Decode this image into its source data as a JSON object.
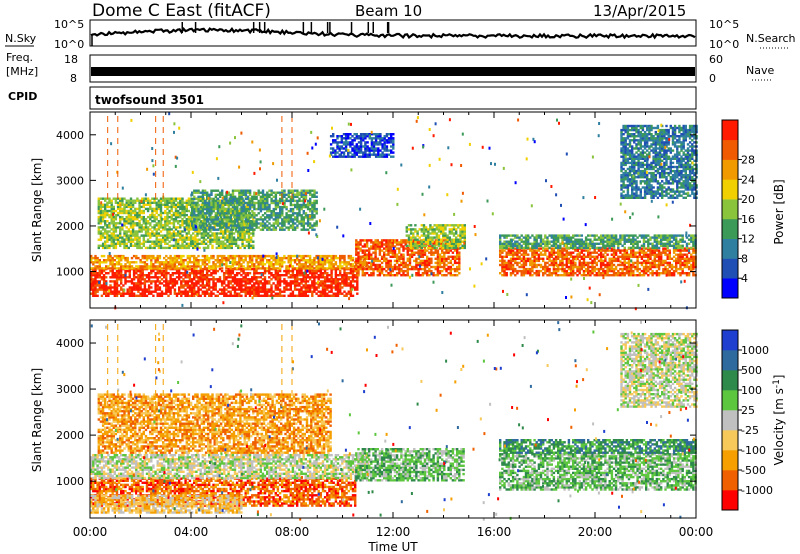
{
  "header": {
    "station": "Dome C East (fitACF)",
    "beam": "Beam 10",
    "date": "13/Apr/2015"
  },
  "strips": {
    "nsky_label": "N.Sky",
    "nsearch_label": "N.Search",
    "nsky_ticks": [
      "10^5",
      "10^0"
    ],
    "nsearch_ticks": [
      "10^5",
      "10^0"
    ],
    "freq_label_1": "Freq.",
    "freq_label_2": "[MHz]",
    "freq_ticks": [
      "18",
      "8"
    ],
    "nave_label": "Nave",
    "nave_ticks": [
      "60",
      "0"
    ],
    "cpid_label": "CPID",
    "cpid_value": "twofsound 3501"
  },
  "chart_data": [
    {
      "type": "heatmap",
      "name": "power-panel",
      "ylabel": "Slant Range [km]",
      "xlabel": "",
      "xlim": [
        0,
        24
      ],
      "ylim": [
        200,
        4500
      ],
      "y_ticks": [
        1000,
        2000,
        3000,
        4000
      ],
      "colorbar": {
        "label": "Power [dB]",
        "ticks": [
          "4",
          "8",
          "12",
          "16",
          "20",
          "24",
          "28"
        ],
        "colors": [
          "#0000ff",
          "#1f4fb4",
          "#2f7fa0",
          "#3c9a58",
          "#8ac43c",
          "#f0d000",
          "#f09a00",
          "#f05a00",
          "#ff1a00"
        ]
      },
      "bands": [
        {
          "t0": 0.0,
          "t1": 10.6,
          "r0": 450,
          "r1": 1050,
          "level": 8
        },
        {
          "t0": 0.0,
          "t1": 11.0,
          "r0": 1050,
          "r1": 1350,
          "level": 6
        },
        {
          "t0": 0.3,
          "t1": 6.5,
          "r0": 1500,
          "r1": 2600,
          "level": 4
        },
        {
          "t0": 4.0,
          "t1": 9.0,
          "r0": 1900,
          "r1": 2800,
          "level": 3
        },
        {
          "t0": 10.5,
          "t1": 14.6,
          "r0": 900,
          "r1": 1700,
          "level": 7
        },
        {
          "t0": 12.5,
          "t1": 14.8,
          "r0": 1500,
          "r1": 2000,
          "level": 4
        },
        {
          "t0": 16.2,
          "t1": 24.0,
          "r0": 900,
          "r1": 1500,
          "level": 7
        },
        {
          "t0": 16.2,
          "t1": 24.0,
          "r0": 1500,
          "r1": 1800,
          "level": 3
        },
        {
          "t0": 21.0,
          "t1": 24.0,
          "r0": 2600,
          "r1": 4200,
          "level": 2
        },
        {
          "t0": 9.5,
          "t1": 12.0,
          "r0": 3500,
          "r1": 4000,
          "level": 1
        }
      ]
    },
    {
      "type": "heatmap",
      "name": "velocity-panel",
      "ylabel": "Slant Range [km]",
      "xlabel": "Time UT",
      "xlim": [
        0,
        24
      ],
      "ylim": [
        200,
        4500
      ],
      "x_ticks": [
        "00:00",
        "04:00",
        "08:00",
        "12:00",
        "16:00",
        "20:00",
        "00:00"
      ],
      "y_ticks": [
        1000,
        2000,
        3000,
        4000
      ],
      "colorbar": {
        "label": "Velocity [m s^-1]",
        "ticks": [
          "1000",
          "500",
          "100",
          "25",
          "-25",
          "-100",
          "-500",
          "-1000"
        ],
        "colors": [
          "#1f3fd0",
          "#2f6a9e",
          "#2e8a4a",
          "#5cc63e",
          "#c0c0c0",
          "#f7c85a",
          "#f5a000",
          "#f06000",
          "#ff0000"
        ]
      },
      "bands": [
        {
          "t0": 0.0,
          "t1": 10.5,
          "r0": 450,
          "r1": 1050,
          "level": 7
        },
        {
          "t0": 0.0,
          "t1": 11.0,
          "r0": 1050,
          "r1": 1550,
          "level": 4
        },
        {
          "t0": 0.3,
          "t1": 9.5,
          "r0": 1600,
          "r1": 2900,
          "level": 6
        },
        {
          "t0": 10.5,
          "t1": 14.8,
          "r0": 1000,
          "r1": 1700,
          "level": 3
        },
        {
          "t0": 16.2,
          "t1": 24.0,
          "r0": 800,
          "r1": 1600,
          "level": 3
        },
        {
          "t0": 16.2,
          "t1": 24.0,
          "r0": 1600,
          "r1": 1900,
          "level": 2
        },
        {
          "t0": 21.0,
          "t1": 24.0,
          "r0": 2600,
          "r1": 4200,
          "level": 4
        },
        {
          "t0": 0.0,
          "t1": 6.0,
          "r0": 300,
          "r1": 700,
          "level": 5
        }
      ]
    }
  ]
}
